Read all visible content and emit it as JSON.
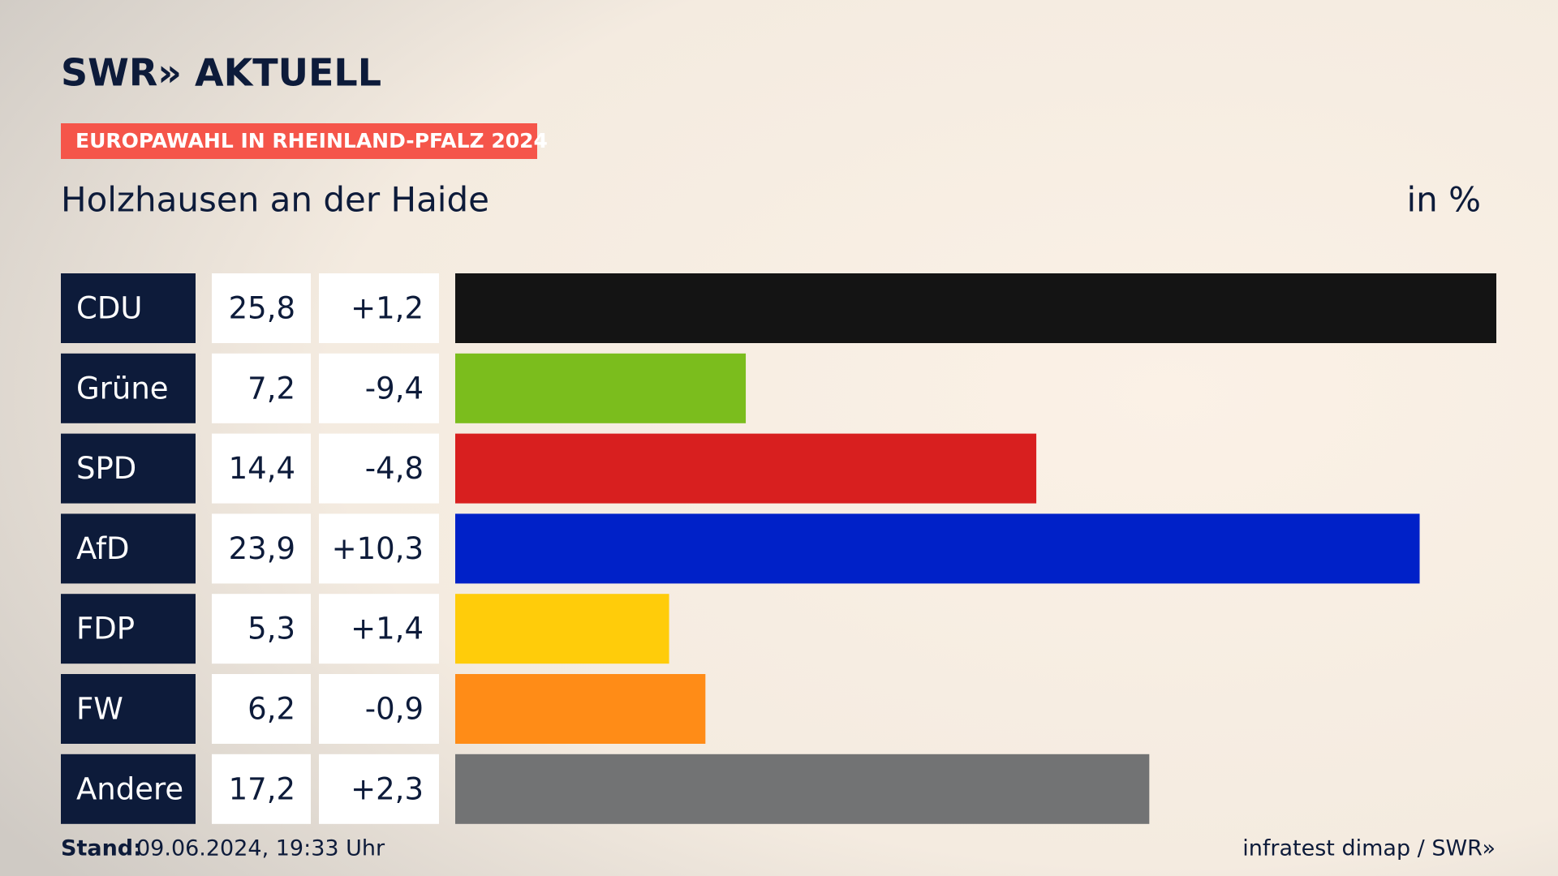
{
  "chart_data": {
    "type": "bar",
    "orientation": "horizontal",
    "brand": "SWR» AKTUELL",
    "kicker": "EUROPAWAHL IN RHEINLAND-PFALZ 2024",
    "title": "Holzhausen an der Haide",
    "unit": "in %",
    "categories": [
      "CDU",
      "Grüne",
      "SPD",
      "AfD",
      "FDP",
      "FW",
      "Andere"
    ],
    "values": [
      25.8,
      7.2,
      14.4,
      23.9,
      5.3,
      6.2,
      17.2
    ],
    "value_labels": [
      "25,8",
      "7,2",
      "14,4",
      "23,9",
      "5,3",
      "6,2",
      "17,2"
    ],
    "changes": [
      1.2,
      -9.4,
      -4.8,
      10.3,
      1.4,
      -0.9,
      2.3
    ],
    "change_labels": [
      "+1,2",
      "-9,4",
      "-4,8",
      "+10,3",
      "+1,4",
      "-0,9",
      "+2,3"
    ],
    "colors": [
      "#141414",
      "#7bbd1d",
      "#d81f1f",
      "#0021c8",
      "#ffcc0a",
      "#ff8c17",
      "#727374"
    ],
    "footer_label": "Stand:",
    "footer_date": "09.06.2024, 19:33 Uhr",
    "source": "infratest dimap / SWR»"
  }
}
